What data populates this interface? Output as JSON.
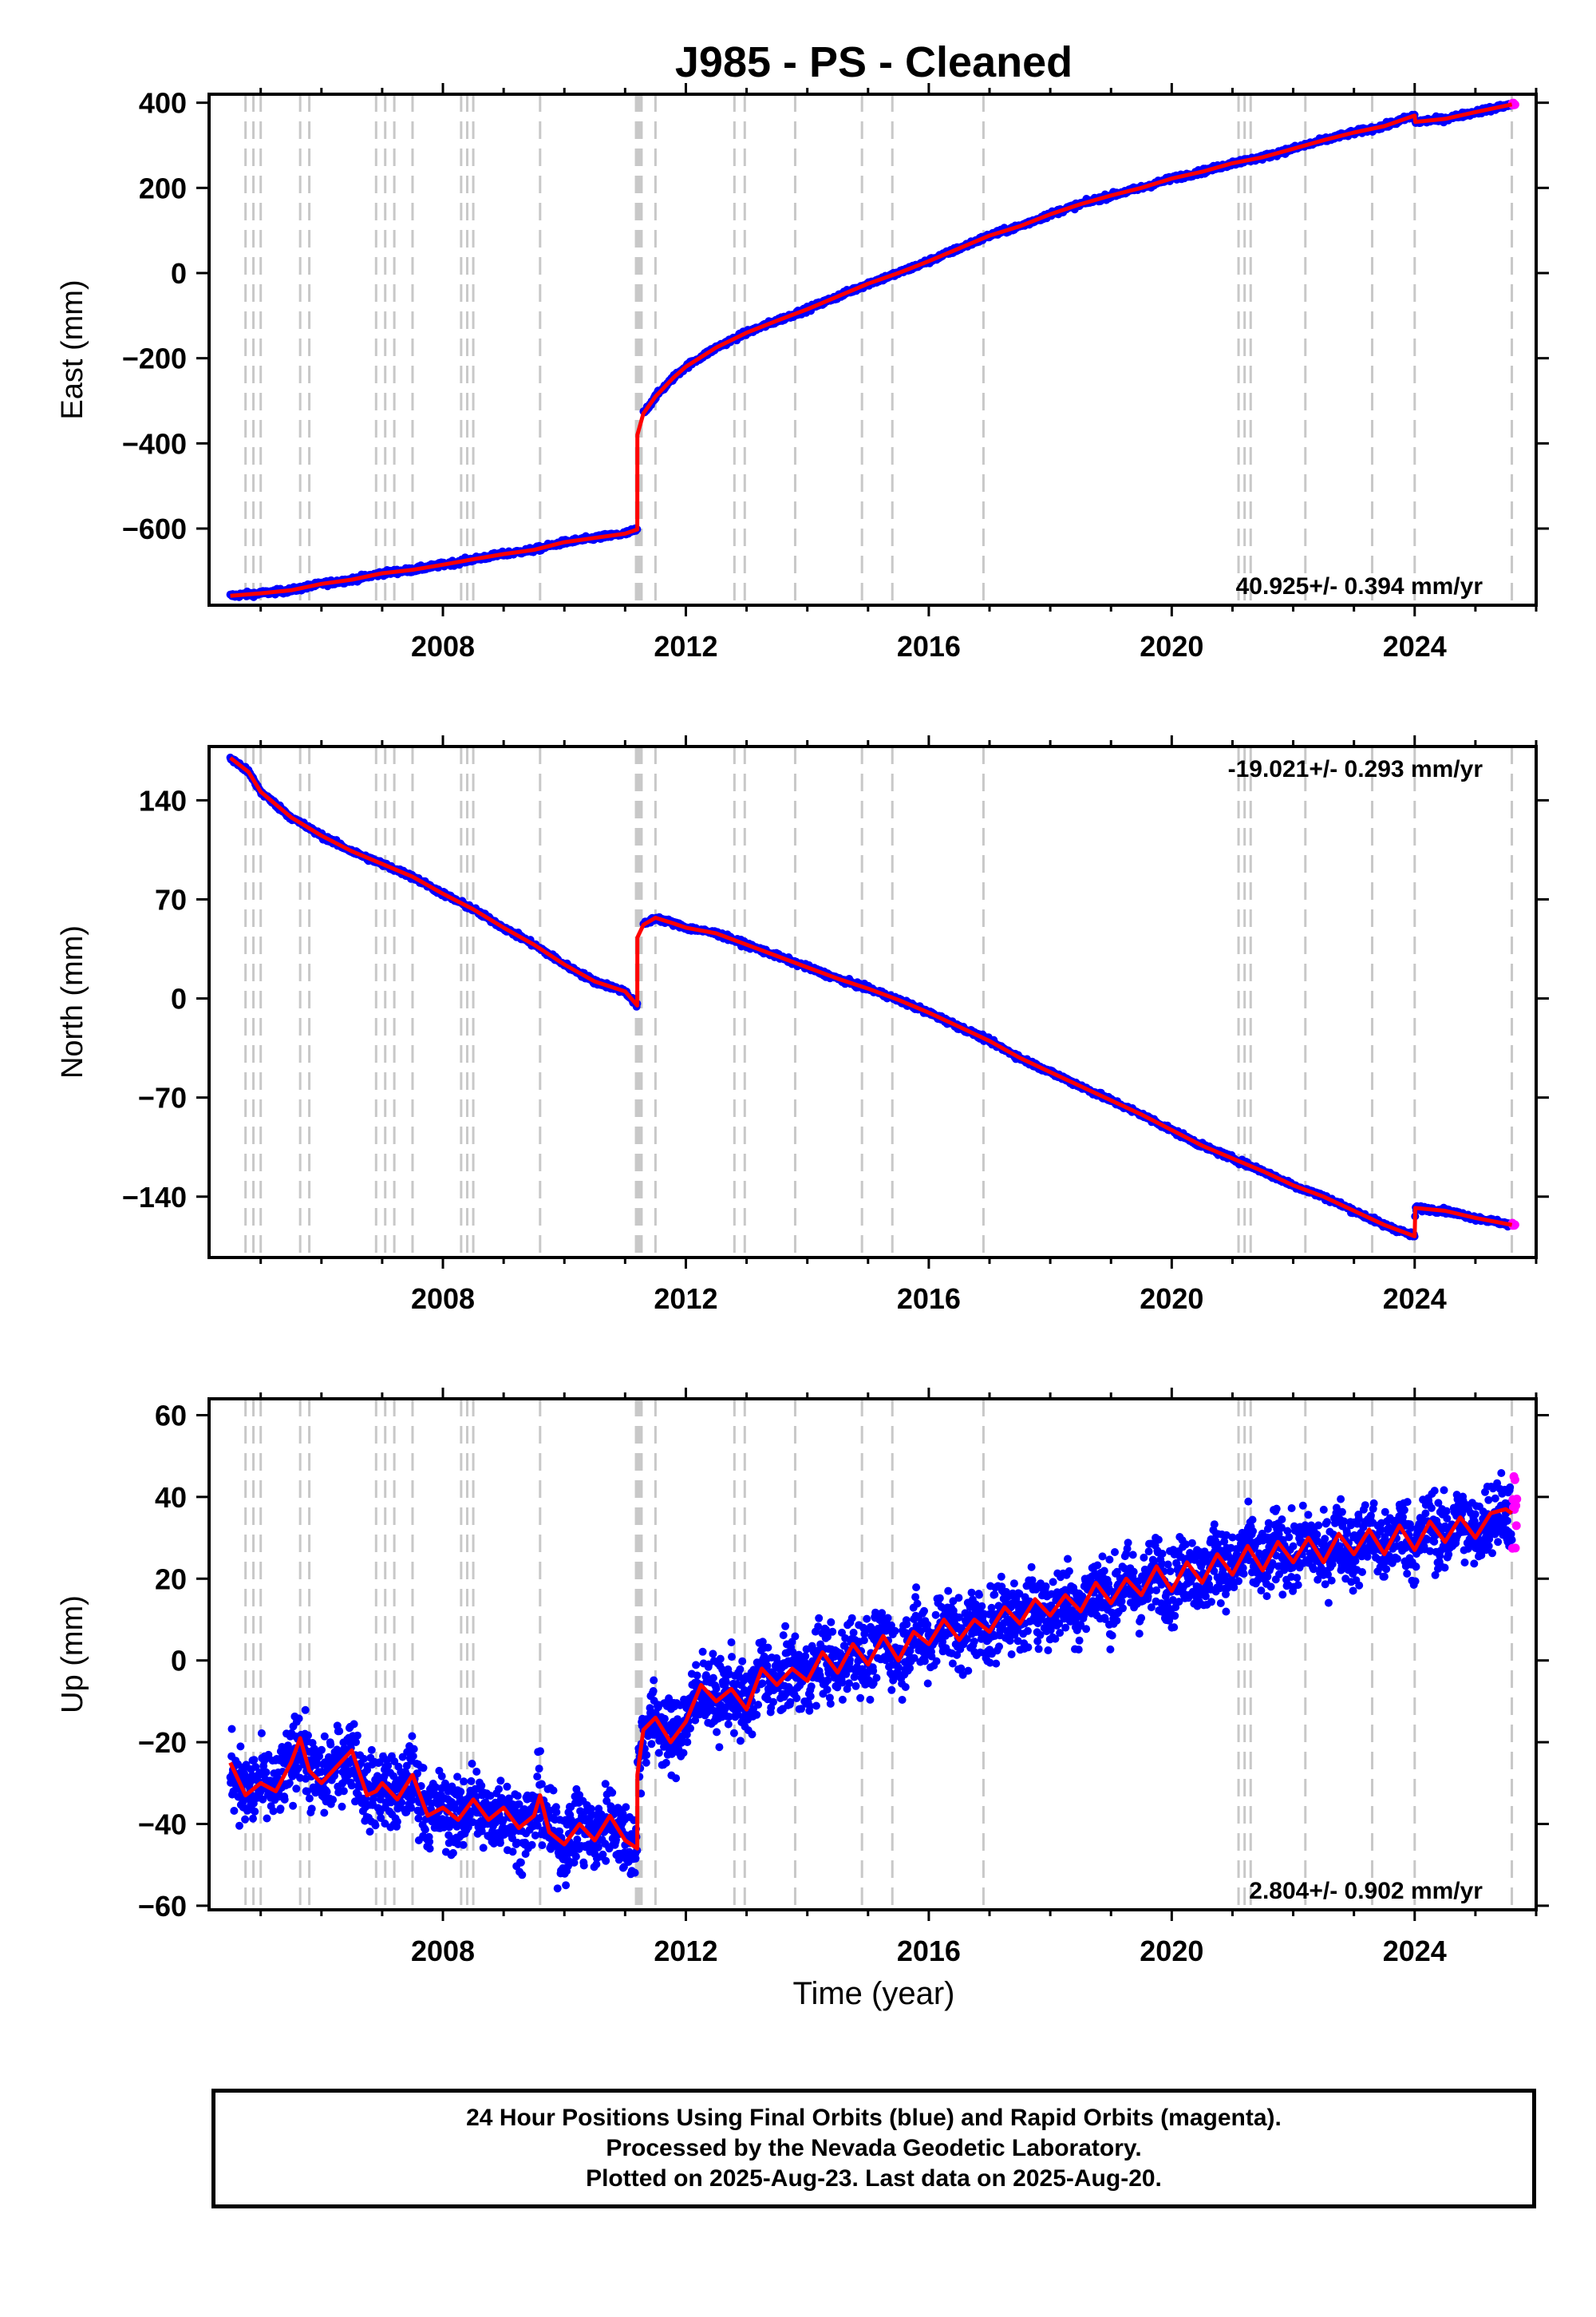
{
  "title": "J985  - PS - Cleaned",
  "xlabel": "Time (year)",
  "colors": {
    "final": "#0000ff",
    "rapid": "#ff00ff",
    "model": "#ff0000",
    "breaks": "#c8c8c8"
  },
  "caption": {
    "line1": "24 Hour Positions Using Final Orbits (blue) and Rapid Orbits (magenta).",
    "line2": "Processed by the Nevada Geodetic Laboratory.",
    "line3": "Plotted on 2025-Aug-23. Last data on 2025-Aug-20."
  },
  "chart_data": [
    {
      "type": "scatter",
      "component": "east",
      "ylabel": "East (mm)",
      "rate_label": "40.925+/- 0.394 mm/yr",
      "xlim": [
        2004.15,
        2026.0
      ],
      "ylim": [
        -780,
        420
      ],
      "xticks": [
        "2008",
        "2012",
        "2016",
        "2020",
        "2024"
      ],
      "yticks": [
        -600,
        -400,
        -200,
        0,
        200,
        400
      ],
      "ytick_labels": [
        "−600",
        "−400",
        "−200",
        "0",
        "200",
        "400"
      ],
      "breaks": [
        2004.75,
        2004.88,
        2005.0,
        2005.65,
        2005.8,
        2006.9,
        2007.05,
        2007.2,
        2007.5,
        2008.3,
        2008.4,
        2008.5,
        2009.6,
        2011.18,
        2011.21,
        2011.24,
        2011.27,
        2011.5,
        2012.8,
        2012.97,
        2013.8,
        2014.9,
        2015.4,
        2016.9,
        2021.1,
        2021.2,
        2021.3,
        2022.2,
        2023.3,
        2024.0,
        2025.6
      ],
      "series": [
        {
          "x": [
            2004.5,
            2005.0,
            2005.5,
            2006.0,
            2006.5,
            2007.0,
            2007.5,
            2008.0,
            2008.5,
            2009.0,
            2009.5,
            2010.0,
            2010.5,
            2011.0,
            2011.2,
            2011.201,
            2011.3,
            2011.5,
            2011.8,
            2012.0,
            2012.5,
            2013.0,
            2013.5,
            2014.0,
            2014.5,
            2015.0,
            2015.5,
            2016.0,
            2016.5,
            2017.0,
            2017.5,
            2018.0,
            2018.5,
            2019.0,
            2019.5,
            2020.0,
            2020.5,
            2021.0,
            2021.5,
            2022.0,
            2022.5,
            2023.0,
            2023.5,
            2024.0,
            2024.01,
            2024.5,
            2025.0,
            2025.6
          ],
          "y": [
            -758,
            -752,
            -745,
            -730,
            -720,
            -705,
            -697,
            -685,
            -672,
            -660,
            -650,
            -632,
            -622,
            -612,
            -602,
            -380,
            -330,
            -290,
            -245,
            -220,
            -175,
            -140,
            -112,
            -85,
            -55,
            -25,
            0,
            28,
            58,
            88,
            110,
            138,
            162,
            182,
            200,
            222,
            238,
            258,
            272,
            292,
            312,
            330,
            345,
            370,
            355,
            362,
            378,
            396
          ]
        }
      ]
    },
    {
      "type": "scatter",
      "component": "north",
      "ylabel": "North (mm)",
      "rate_label": "-19.021+/- 0.293 mm/yr",
      "xlim": [
        2004.15,
        2026.0
      ],
      "ylim": [
        -183,
        178
      ],
      "xticks": [
        "2008",
        "2012",
        "2016",
        "2020",
        "2024"
      ],
      "yticks": [
        -140,
        -70,
        0,
        70,
        140
      ],
      "ytick_labels": [
        "−140",
        "−70",
        "0",
        "70",
        "140"
      ],
      "breaks": [
        2004.75,
        2004.88,
        2005.0,
        2005.65,
        2005.8,
        2006.9,
        2007.05,
        2007.2,
        2007.5,
        2008.3,
        2008.4,
        2008.5,
        2009.6,
        2011.18,
        2011.21,
        2011.24,
        2011.27,
        2011.5,
        2012.8,
        2012.97,
        2013.8,
        2014.9,
        2015.4,
        2016.9,
        2021.1,
        2021.2,
        2021.3,
        2022.2,
        2023.3,
        2024.0,
        2025.6
      ],
      "series": [
        {
          "x": [
            2004.5,
            2004.8,
            2005.0,
            2005.5,
            2006.0,
            2006.5,
            2007.0,
            2007.5,
            2008.0,
            2008.5,
            2009.0,
            2009.5,
            2010.0,
            2010.5,
            2011.0,
            2011.2,
            2011.201,
            2011.3,
            2011.5,
            2011.8,
            2012.0,
            2012.5,
            2013.0,
            2013.5,
            2014.0,
            2014.5,
            2015.0,
            2015.5,
            2016.0,
            2016.5,
            2017.0,
            2017.5,
            2018.0,
            2018.5,
            2019.0,
            2019.5,
            2020.0,
            2020.5,
            2021.0,
            2021.5,
            2022.0,
            2022.5,
            2023.0,
            2023.5,
            2024.0,
            2024.01,
            2024.5,
            2025.0,
            2025.6
          ],
          "y": [
            170,
            160,
            146,
            128,
            115,
            104,
            95,
            86,
            74,
            63,
            50,
            38,
            24,
            12,
            5,
            -5,
            43,
            52,
            57,
            53,
            50,
            46,
            38,
            30,
            22,
            14,
            7,
            -1,
            -10,
            -20,
            -30,
            -42,
            -52,
            -62,
            -72,
            -82,
            -93,
            -104,
            -113,
            -122,
            -132,
            -140,
            -150,
            -160,
            -168,
            -148,
            -150,
            -155,
            -160
          ]
        }
      ]
    },
    {
      "type": "scatter",
      "component": "up",
      "ylabel": "Up (mm)",
      "rate_label": "2.804+/- 0.902 mm/yr",
      "xlim": [
        2004.15,
        2026.0
      ],
      "ylim": [
        -61,
        64
      ],
      "xticks": [
        "2008",
        "2012",
        "2016",
        "2020",
        "2024"
      ],
      "yticks": [
        -60,
        -40,
        -20,
        0,
        20,
        40,
        60
      ],
      "ytick_labels": [
        "−60",
        "−40",
        "−20",
        "0",
        "20",
        "40",
        "60"
      ],
      "breaks": [
        2004.75,
        2004.88,
        2005.0,
        2005.65,
        2005.8,
        2006.9,
        2007.05,
        2007.2,
        2007.5,
        2008.3,
        2008.4,
        2008.5,
        2009.6,
        2011.18,
        2011.21,
        2011.24,
        2011.27,
        2011.5,
        2012.8,
        2012.97,
        2013.8,
        2014.9,
        2015.4,
        2016.9,
        2021.1,
        2021.2,
        2021.3,
        2022.2,
        2023.3,
        2024.0,
        2025.6
      ],
      "series": [
        {
          "x": [
            2004.5,
            2004.75,
            2005.0,
            2005.25,
            2005.5,
            2005.65,
            2005.8,
            2006.0,
            2006.25,
            2006.5,
            2006.75,
            2006.9,
            2007.0,
            2007.25,
            2007.5,
            2007.75,
            2008.0,
            2008.25,
            2008.5,
            2008.75,
            2009.0,
            2009.25,
            2009.5,
            2009.6,
            2009.75,
            2010.0,
            2010.25,
            2010.5,
            2010.75,
            2011.0,
            2011.2,
            2011.201,
            2011.3,
            2011.5,
            2011.75,
            2012.0,
            2012.25,
            2012.5,
            2012.75,
            2013.0,
            2013.25,
            2013.5,
            2013.75,
            2014.0,
            2014.25,
            2014.5,
            2014.75,
            2015.0,
            2015.25,
            2015.5,
            2015.75,
            2016.0,
            2016.25,
            2016.5,
            2016.75,
            2017.0,
            2017.25,
            2017.5,
            2017.75,
            2018.0,
            2018.25,
            2018.5,
            2018.75,
            2019.0,
            2019.25,
            2019.5,
            2019.75,
            2020.0,
            2020.25,
            2020.5,
            2020.75,
            2021.0,
            2021.25,
            2021.5,
            2021.75,
            2022.0,
            2022.25,
            2022.5,
            2022.75,
            2023.0,
            2023.25,
            2023.5,
            2023.75,
            2024.0,
            2024.25,
            2024.5,
            2024.75,
            2025.0,
            2025.25,
            2025.5,
            2025.6
          ],
          "y": [
            -25,
            -33,
            -30,
            -32,
            -25,
            -19,
            -27,
            -30,
            -26,
            -22,
            -33,
            -32,
            -30,
            -34,
            -28,
            -38,
            -36,
            -39,
            -34,
            -39,
            -36,
            -41,
            -38,
            -33,
            -42,
            -45,
            -40,
            -44,
            -38,
            -44,
            -46,
            -28,
            -17,
            -14,
            -20,
            -15,
            -6,
            -10,
            -7,
            -12,
            -2,
            -6,
            -2,
            -5,
            2,
            -3,
            4,
            -1,
            6,
            0,
            7,
            4,
            10,
            5,
            10,
            7,
            13,
            9,
            15,
            11,
            16,
            12,
            19,
            14,
            20,
            16,
            23,
            17,
            24,
            19,
            26,
            21,
            28,
            22,
            29,
            24,
            30,
            24,
            31,
            26,
            32,
            26,
            33,
            27,
            34,
            29,
            35,
            30,
            36,
            37,
            36
          ]
        }
      ]
    }
  ]
}
